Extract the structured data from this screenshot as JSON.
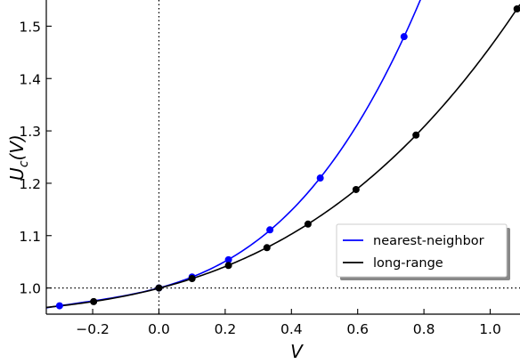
{
  "chart_data": {
    "type": "line",
    "xlabel": "V",
    "ylabel": "U_c(V)",
    "xlim": [
      -0.34,
      1.09
    ],
    "ylim": [
      0.95,
      1.55
    ],
    "x_ticks": [
      -0.2,
      0.0,
      0.2,
      0.4,
      0.6,
      0.8,
      1.0
    ],
    "x_tick_labels": [
      "−0.2",
      "0.0",
      "0.2",
      "0.4",
      "0.6",
      "0.8",
      "1.0"
    ],
    "y_ticks": [
      1.0,
      1.1,
      1.2,
      1.3,
      1.4,
      1.5
    ],
    "y_tick_labels": [
      "1.0",
      "1.1",
      "1.2",
      "1.3",
      "1.4",
      "1.5"
    ],
    "grid": false,
    "reference_lines": {
      "x": 0.0,
      "y": 1.0,
      "style": "dotted"
    },
    "legend": {
      "placement": "lower-right"
    },
    "series": [
      {
        "name": "nearest-neighbor",
        "color": "#0000ff",
        "points": [
          {
            "x": -0.3,
            "y": 0.966
          },
          {
            "x": 0.0,
            "y": 1.0
          },
          {
            "x": 0.1,
            "y": 1.021
          },
          {
            "x": 0.21,
            "y": 1.054
          },
          {
            "x": 0.335,
            "y": 1.111
          },
          {
            "x": 0.487,
            "y": 1.21
          },
          {
            "x": 0.74,
            "y": 1.48
          }
        ]
      },
      {
        "name": "long-range",
        "color": "#000000",
        "points": [
          {
            "x": -0.197,
            "y": 0.974
          },
          {
            "x": 0.0,
            "y": 1.0
          },
          {
            "x": 0.1,
            "y": 1.018
          },
          {
            "x": 0.21,
            "y": 1.043
          },
          {
            "x": 0.326,
            "y": 1.077
          },
          {
            "x": 0.45,
            "y": 1.122
          },
          {
            "x": 0.595,
            "y": 1.188
          },
          {
            "x": 0.776,
            "y": 1.292
          },
          {
            "x": 1.081,
            "y": 1.533
          }
        ]
      }
    ]
  }
}
